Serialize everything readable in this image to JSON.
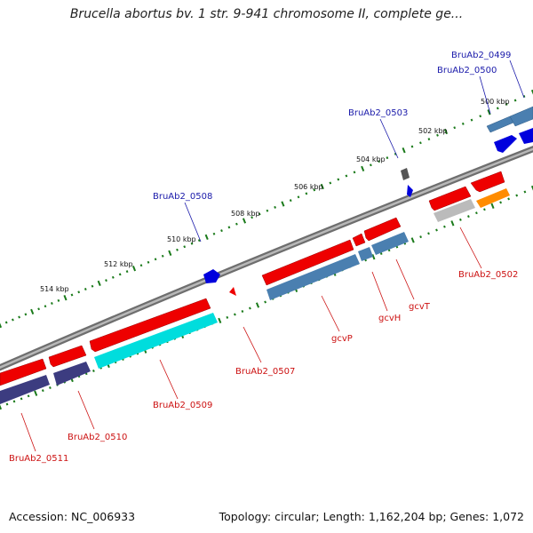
{
  "title": "Brucella abortus bv. 1 str. 9-941 chromosome II, complete ge...",
  "footer": {
    "accession": "Accession: NC_006933",
    "summary": "Topology: circular; Length: 1,162,204 bp; Genes: 1,072"
  },
  "scale_labels": [
    "500 kbp",
    "502 kbp",
    "504 kbp",
    "506 kbp",
    "508 kbp",
    "510 kbp",
    "512 kbp",
    "514 kbp"
  ],
  "colors": {
    "backbone": "#8a8a8a",
    "tick": "#1a7a1a",
    "forward_label": "#1a1aaa",
    "reverse_label": "#cc1111",
    "cds_red": "#ee0000",
    "cds_blue": "#0000dd",
    "cog_steel": "#4a7fb0",
    "cog_navy": "#3c3c80",
    "cog_cyan": "#00dddd",
    "cog_orange": "#ff8c00",
    "cog_gray": "#bbbbbb",
    "cog_dark": "#555555"
  },
  "forward_labels": [
    "BruAb2_0499",
    "BruAb2_0500",
    "BruAb2_0503",
    "BruAb2_0508"
  ],
  "reverse_labels": [
    "BruAb2_0502",
    "gcvT",
    "gcvH",
    "gcvP",
    "BruAb2_0507",
    "BruAb2_0509",
    "BruAb2_0510",
    "BruAb2_0511"
  ]
}
